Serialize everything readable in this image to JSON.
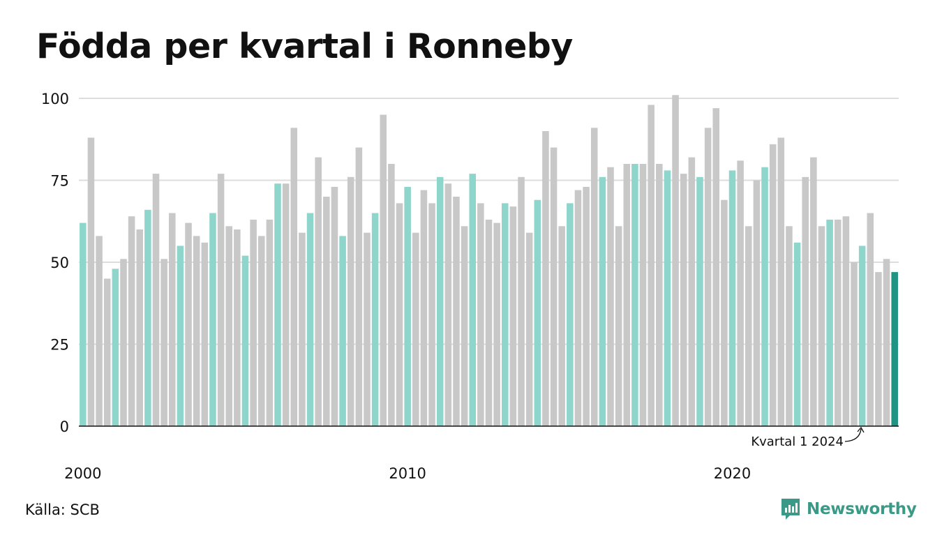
{
  "title": "Födda per kvartal i Ronneby",
  "source": "Källa: SCB",
  "brand": {
    "name": "Newsworthy",
    "icon": "newsworthy-logo-icon"
  },
  "colors": {
    "q1": "#8ed5cc",
    "other": "#c8c8c8",
    "highlight": "#1f9484",
    "grid": "#dddddd",
    "axis": "#111111"
  },
  "chart_data": {
    "type": "bar",
    "start_year": 2000,
    "start_quarter": 1,
    "periods_per_year": 4,
    "values": [
      62,
      88,
      58,
      45,
      48,
      51,
      64,
      60,
      66,
      77,
      51,
      65,
      55,
      62,
      58,
      56,
      65,
      77,
      61,
      60,
      52,
      63,
      58,
      63,
      74,
      74,
      91,
      59,
      65,
      82,
      70,
      73,
      58,
      76,
      85,
      59,
      65,
      95,
      80,
      68,
      73,
      59,
      72,
      68,
      76,
      74,
      70,
      61,
      77,
      68,
      63,
      62,
      68,
      67,
      76,
      59,
      69,
      90,
      85,
      61,
      68,
      72,
      73,
      91,
      76,
      79,
      61,
      80,
      80,
      80,
      98,
      80,
      78,
      101,
      77,
      82,
      76,
      91,
      97,
      69,
      78,
      81,
      61,
      75,
      79,
      86,
      88,
      61,
      56,
      76,
      82,
      61,
      63,
      63,
      64,
      50,
      55,
      65,
      47,
      51,
      47
    ],
    "ylim": [
      0,
      100
    ],
    "yticks": [
      "0",
      "25",
      "50",
      "75",
      "100"
    ],
    "xtick_labels": [
      "2000",
      "2010",
      "2020"
    ],
    "annotation": "Kvartal 1 2024",
    "grid": true,
    "legend": "none"
  }
}
